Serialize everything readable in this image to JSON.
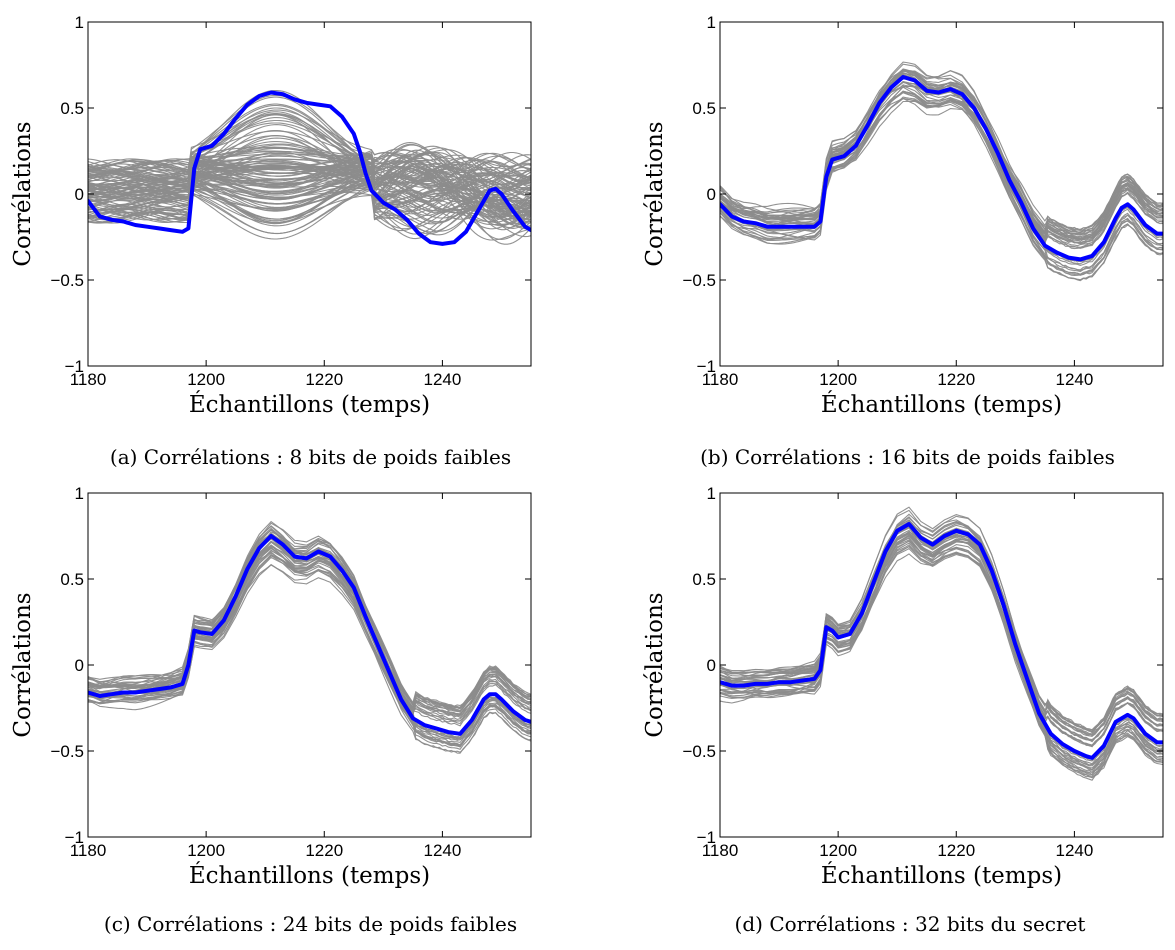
{
  "chart_data": [
    {
      "type": "line",
      "id": "a",
      "caption": "(a) Corrélations : 8 bits de poids faibles",
      "xlabel": "Échantillons (temps)",
      "ylabel": "Corrélations",
      "xlim": [
        1180,
        1255
      ],
      "ylim": [
        -1,
        1
      ],
      "xticks": [
        "1180",
        "1200",
        "1220",
        "1240"
      ],
      "yticks": [
        "−1",
        "−0.5",
        "0",
        "0.5",
        "1"
      ],
      "grid": false,
      "background_colors": "#8c8c8c",
      "highlight_color": "#0000ff",
      "background": {
        "count": 110,
        "before": [
          -0.2,
          0.17
        ],
        "after": [
          -0.3,
          0.65
        ],
        "jump_at": 1197.5,
        "spread_peak": 1212
      },
      "highlight": {
        "name": "",
        "points": [
          [
            1180,
            -0.04
          ],
          [
            1182,
            -0.13
          ],
          [
            1184,
            -0.15
          ],
          [
            1186,
            -0.16
          ],
          [
            1188,
            -0.18
          ],
          [
            1190,
            -0.19
          ],
          [
            1192,
            -0.2
          ],
          [
            1194,
            -0.21
          ],
          [
            1196,
            -0.22
          ],
          [
            1197,
            -0.2
          ],
          [
            1198,
            0.15
          ],
          [
            1199,
            0.26
          ],
          [
            1201,
            0.28
          ],
          [
            1203,
            0.35
          ],
          [
            1205,
            0.44
          ],
          [
            1207,
            0.52
          ],
          [
            1209,
            0.57
          ],
          [
            1211,
            0.59
          ],
          [
            1213,
            0.58
          ],
          [
            1215,
            0.55
          ],
          [
            1217,
            0.53
          ],
          [
            1219,
            0.52
          ],
          [
            1221,
            0.51
          ],
          [
            1223,
            0.45
          ],
          [
            1225,
            0.35
          ],
          [
            1226,
            0.25
          ],
          [
            1227,
            0.12
          ],
          [
            1228,
            0.02
          ],
          [
            1230,
            -0.05
          ],
          [
            1232,
            -0.09
          ],
          [
            1234,
            -0.15
          ],
          [
            1236,
            -0.23
          ],
          [
            1238,
            -0.28
          ],
          [
            1240,
            -0.29
          ],
          [
            1242,
            -0.28
          ],
          [
            1244,
            -0.22
          ],
          [
            1246,
            -0.1
          ],
          [
            1248,
            0.02
          ],
          [
            1249,
            0.03
          ],
          [
            1250,
            0.0
          ],
          [
            1252,
            -0.1
          ],
          [
            1254,
            -0.19
          ],
          [
            1255,
            -0.21
          ]
        ]
      }
    },
    {
      "type": "line",
      "id": "b",
      "caption": "(b) Corrélations : 16 bits de poids faibles",
      "xlabel": "Échantillons (temps)",
      "ylabel": "Corrélations",
      "xlim": [
        1180,
        1255
      ],
      "ylim": [
        -1,
        1
      ],
      "xticks": [
        "1180",
        "1200",
        "1220",
        "1240"
      ],
      "yticks": [
        "−1",
        "−0.5",
        "0",
        "0.5",
        "1"
      ],
      "grid": false,
      "background_colors": "#8c8c8c",
      "highlight_color": "#0000ff",
      "background": {
        "count": 40,
        "spread": 0.08
      },
      "highlight": {
        "name": "",
        "points": [
          [
            1180,
            -0.06
          ],
          [
            1182,
            -0.13
          ],
          [
            1184,
            -0.16
          ],
          [
            1186,
            -0.17
          ],
          [
            1188,
            -0.19
          ],
          [
            1190,
            -0.19
          ],
          [
            1192,
            -0.19
          ],
          [
            1194,
            -0.19
          ],
          [
            1196,
            -0.19
          ],
          [
            1197,
            -0.16
          ],
          [
            1198,
            0.1
          ],
          [
            1199,
            0.2
          ],
          [
            1201,
            0.22
          ],
          [
            1203,
            0.28
          ],
          [
            1205,
            0.4
          ],
          [
            1207,
            0.53
          ],
          [
            1209,
            0.62
          ],
          [
            1211,
            0.68
          ],
          [
            1213,
            0.66
          ],
          [
            1215,
            0.6
          ],
          [
            1217,
            0.59
          ],
          [
            1219,
            0.61
          ],
          [
            1221,
            0.58
          ],
          [
            1223,
            0.5
          ],
          [
            1225,
            0.38
          ],
          [
            1227,
            0.24
          ],
          [
            1229,
            0.08
          ],
          [
            1231,
            -0.05
          ],
          [
            1233,
            -0.2
          ],
          [
            1235,
            -0.3
          ],
          [
            1237,
            -0.34
          ],
          [
            1239,
            -0.37
          ],
          [
            1241,
            -0.38
          ],
          [
            1243,
            -0.36
          ],
          [
            1245,
            -0.28
          ],
          [
            1247,
            -0.14
          ],
          [
            1248,
            -0.08
          ],
          [
            1249,
            -0.06
          ],
          [
            1250,
            -0.09
          ],
          [
            1252,
            -0.18
          ],
          [
            1254,
            -0.23
          ],
          [
            1255,
            -0.23
          ]
        ]
      }
    },
    {
      "type": "line",
      "id": "c",
      "caption": "(c) Corrélations : 24 bits de poids faibles",
      "xlabel": "Échantillons (temps)",
      "ylabel": "Corrélations",
      "xlim": [
        1180,
        1255
      ],
      "ylim": [
        -1,
        1
      ],
      "xticks": [
        "1180",
        "1200",
        "1220",
        "1240"
      ],
      "yticks": [
        "−1",
        "−0.5",
        "0",
        "0.5",
        "1"
      ],
      "grid": false,
      "background_colors": "#8c8c8c",
      "highlight_color": "#0000ff",
      "background": {
        "count": 40,
        "spread": 0.07
      },
      "highlight": {
        "name": "",
        "points": [
          [
            1180,
            -0.16
          ],
          [
            1182,
            -0.18
          ],
          [
            1184,
            -0.17
          ],
          [
            1186,
            -0.16
          ],
          [
            1188,
            -0.16
          ],
          [
            1190,
            -0.15
          ],
          [
            1192,
            -0.14
          ],
          [
            1194,
            -0.13
          ],
          [
            1196,
            -0.11
          ],
          [
            1197,
            0.0
          ],
          [
            1198,
            0.2
          ],
          [
            1199,
            0.19
          ],
          [
            1201,
            0.18
          ],
          [
            1203,
            0.26
          ],
          [
            1205,
            0.4
          ],
          [
            1207,
            0.56
          ],
          [
            1209,
            0.68
          ],
          [
            1211,
            0.75
          ],
          [
            1213,
            0.7
          ],
          [
            1215,
            0.63
          ],
          [
            1217,
            0.62
          ],
          [
            1219,
            0.66
          ],
          [
            1221,
            0.63
          ],
          [
            1223,
            0.55
          ],
          [
            1225,
            0.45
          ],
          [
            1227,
            0.28
          ],
          [
            1229,
            0.12
          ],
          [
            1231,
            -0.04
          ],
          [
            1233,
            -0.2
          ],
          [
            1235,
            -0.31
          ],
          [
            1237,
            -0.35
          ],
          [
            1239,
            -0.37
          ],
          [
            1241,
            -0.39
          ],
          [
            1243,
            -0.4
          ],
          [
            1245,
            -0.32
          ],
          [
            1247,
            -0.2
          ],
          [
            1248,
            -0.17
          ],
          [
            1249,
            -0.17
          ],
          [
            1250,
            -0.2
          ],
          [
            1252,
            -0.27
          ],
          [
            1254,
            -0.32
          ],
          [
            1255,
            -0.33
          ]
        ]
      }
    },
    {
      "type": "line",
      "id": "d",
      "caption": "(d) Corrélations : 32 bits du secret",
      "xlabel": "Échantillons (temps)",
      "ylabel": "Corrélations",
      "xlim": [
        1180,
        1255
      ],
      "ylim": [
        -1,
        1
      ],
      "xticks": [
        "1180",
        "1200",
        "1220",
        "1240"
      ],
      "yticks": [
        "−1",
        "−0.5",
        "0",
        "0.5",
        "1"
      ],
      "grid": false,
      "background_colors": "#8c8c8c",
      "highlight_color": "#0000ff",
      "background": {
        "count": 40,
        "spread": 0.08
      },
      "highlight": {
        "name": "",
        "points": [
          [
            1180,
            -0.1
          ],
          [
            1182,
            -0.12
          ],
          [
            1184,
            -0.12
          ],
          [
            1186,
            -0.11
          ],
          [
            1188,
            -0.11
          ],
          [
            1190,
            -0.1
          ],
          [
            1192,
            -0.1
          ],
          [
            1194,
            -0.09
          ],
          [
            1196,
            -0.08
          ],
          [
            1197,
            -0.03
          ],
          [
            1198,
            0.22
          ],
          [
            1199,
            0.2
          ],
          [
            1200,
            0.16
          ],
          [
            1202,
            0.18
          ],
          [
            1204,
            0.3
          ],
          [
            1206,
            0.48
          ],
          [
            1208,
            0.66
          ],
          [
            1210,
            0.78
          ],
          [
            1212,
            0.82
          ],
          [
            1214,
            0.74
          ],
          [
            1216,
            0.7
          ],
          [
            1218,
            0.75
          ],
          [
            1220,
            0.78
          ],
          [
            1222,
            0.76
          ],
          [
            1224,
            0.7
          ],
          [
            1226,
            0.55
          ],
          [
            1228,
            0.35
          ],
          [
            1230,
            0.12
          ],
          [
            1232,
            -0.08
          ],
          [
            1234,
            -0.28
          ],
          [
            1236,
            -0.4
          ],
          [
            1238,
            -0.46
          ],
          [
            1240,
            -0.5
          ],
          [
            1242,
            -0.53
          ],
          [
            1243,
            -0.54
          ],
          [
            1245,
            -0.47
          ],
          [
            1247,
            -0.33
          ],
          [
            1249,
            -0.29
          ],
          [
            1250,
            -0.31
          ],
          [
            1252,
            -0.4
          ],
          [
            1254,
            -0.45
          ],
          [
            1255,
            -0.45
          ]
        ]
      }
    }
  ]
}
